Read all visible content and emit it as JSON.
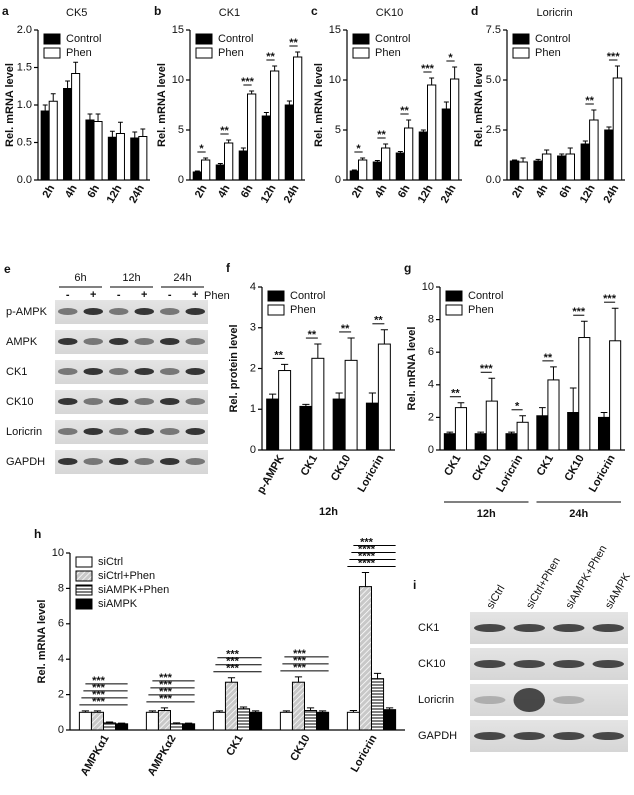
{
  "chart_data": [
    {
      "type": "bar",
      "panel": "a",
      "title": "CK5",
      "ylabel": "Rel. mRNA level",
      "legend": "upper left",
      "categories": [
        "2h",
        "4h",
        "6h",
        "12h",
        "24h"
      ],
      "series": [
        {
          "name": "Control",
          "color": "#000000",
          "values": [
            0.92,
            1.22,
            0.8,
            0.57,
            0.56
          ],
          "errors": [
            0.08,
            0.1,
            0.08,
            0.08,
            0.08
          ]
        },
        {
          "name": "Phen",
          "color": "#ffffff",
          "values": [
            1.05,
            1.42,
            0.78,
            0.62,
            0.58
          ],
          "errors": [
            0.1,
            0.15,
            0.1,
            0.15,
            0.1
          ]
        }
      ],
      "ylim": [
        0,
        2
      ],
      "yticks": [
        {
          "value": 0,
          "label": "0.0"
        },
        0.5,
        {
          "value": 1,
          "label": "1.0"
        },
        1.5,
        {
          "value": 2,
          "label": "2.0"
        }
      ]
    },
    {
      "type": "bar",
      "panel": "b",
      "title": "CK1",
      "ylabel": "Rel. mRNA level",
      "legend": "upper left",
      "categories": [
        "2h",
        "4h",
        "6h",
        "12h",
        "24h"
      ],
      "series": [
        {
          "name": "Control",
          "color": "#000000",
          "values": [
            0.8,
            1.5,
            2.9,
            6.4,
            7.5
          ],
          "errors": [
            0.1,
            0.15,
            0.3,
            0.35,
            0.4
          ]
        },
        {
          "name": "Phen",
          "color": "#ffffff",
          "values": [
            2.0,
            3.7,
            8.6,
            10.9,
            12.3
          ],
          "errors": [
            0.2,
            0.3,
            0.3,
            0.5,
            0.5
          ]
        }
      ],
      "sig": [
        "*",
        "**",
        "***",
        "**",
        "**"
      ],
      "ylim": [
        0,
        15
      ],
      "yticks": [
        0,
        5,
        10,
        15
      ]
    },
    {
      "type": "bar",
      "panel": "c",
      "title": "CK10",
      "ylabel": "Rel. mRNA level",
      "legend": "upper left",
      "categories": [
        "2h",
        "4h",
        "6h",
        "12h",
        "24h"
      ],
      "series": [
        {
          "name": "Control",
          "color": "#000000",
          "values": [
            0.9,
            1.8,
            2.7,
            4.8,
            7.1
          ],
          "errors": [
            0.1,
            0.15,
            0.15,
            0.2,
            0.7
          ]
        },
        {
          "name": "Phen",
          "color": "#ffffff",
          "values": [
            2.0,
            3.2,
            5.2,
            9.5,
            10.1
          ],
          "errors": [
            0.2,
            0.4,
            0.8,
            0.7,
            1.2
          ]
        }
      ],
      "sig": [
        "*",
        "**",
        "**",
        "***",
        "*"
      ],
      "ylim": [
        0,
        15
      ],
      "yticks": [
        0,
        5,
        10,
        15
      ]
    },
    {
      "type": "bar",
      "panel": "d",
      "title": "Loricrin",
      "ylabel": "Rel. mRNA level",
      "legend": "upper left",
      "categories": [
        "2h",
        "4h",
        "6h",
        "12h",
        "24h"
      ],
      "series": [
        {
          "name": "Control",
          "color": "#000000",
          "values": [
            0.95,
            0.95,
            1.2,
            1.8,
            2.5
          ],
          "errors": [
            0.05,
            0.08,
            0.1,
            0.15,
            0.15
          ]
        },
        {
          "name": "Phen",
          "color": "#ffffff",
          "values": [
            0.9,
            1.3,
            1.3,
            3.0,
            5.1
          ],
          "errors": [
            0.2,
            0.2,
            0.3,
            0.5,
            0.6
          ]
        }
      ],
      "sig": [
        null,
        null,
        null,
        "**",
        "***"
      ],
      "ylim": [
        0,
        7.5
      ],
      "yticks": [
        {
          "value": 0,
          "label": "0.0"
        },
        2.5,
        {
          "value": 5,
          "label": "5.0"
        },
        7.5
      ]
    },
    {
      "type": "bar",
      "panel": "f",
      "ylabel": "Rel. protein level",
      "legend": "upper left",
      "xlabel": "12h",
      "categories": [
        "p-AMPK",
        "CK1",
        "CK10",
        "Loricrin"
      ],
      "series": [
        {
          "name": "Control",
          "color": "#000000",
          "values": [
            1.25,
            1.07,
            1.25,
            1.15
          ],
          "errors": [
            0.12,
            0.05,
            0.15,
            0.25
          ]
        },
        {
          "name": "Phen",
          "color": "#ffffff",
          "values": [
            1.95,
            2.25,
            2.2,
            2.6
          ],
          "errors": [
            0.15,
            0.35,
            0.55,
            0.35
          ]
        }
      ],
      "sig": [
        "**",
        "**",
        "**",
        "**"
      ],
      "ylim": [
        0,
        4
      ],
      "yticks": [
        0,
        1,
        2,
        3,
        4
      ]
    },
    {
      "type": "bar",
      "panel": "g",
      "ylabel": "Rel. mRNA level",
      "legend": "upper left",
      "groups": [
        "12h",
        "24h"
      ],
      "categories": [
        "CK1",
        "CK10",
        "Loricrin",
        "CK1",
        "CK10",
        "Loricrin"
      ],
      "series": [
        {
          "name": "Control",
          "color": "#000000",
          "values": [
            1.0,
            1.0,
            1.0,
            2.1,
            2.3,
            2.0
          ],
          "errors": [
            0.1,
            0.1,
            0.1,
            0.5,
            1.5,
            0.3
          ]
        },
        {
          "name": "Phen",
          "color": "#ffffff",
          "values": [
            2.6,
            3.0,
            1.7,
            4.3,
            6.9,
            6.7
          ],
          "errors": [
            0.3,
            1.4,
            0.4,
            0.8,
            1.0,
            2.0
          ]
        }
      ],
      "sig": [
        "**",
        "***",
        "*",
        "**",
        "***",
        "***"
      ],
      "ylim": [
        0,
        10
      ],
      "yticks": [
        0,
        2,
        4,
        6,
        8,
        10
      ]
    },
    {
      "type": "bar",
      "panel": "h",
      "ylabel": "Rel. mRNA level",
      "legend": "upper left",
      "categories": [
        "AMPKα1",
        "AMPKα2",
        "CK1",
        "CK10",
        "Loricrin"
      ],
      "series": [
        {
          "name": "siCtrl",
          "color": "#ffffff",
          "values": [
            1.0,
            1.0,
            1.0,
            1.0,
            1.0
          ],
          "errors": [
            0.08,
            0.08,
            0.08,
            0.08,
            0.1
          ]
        },
        {
          "name": "siCtrl+Phen",
          "color": "#c8c8c8",
          "hatch": "diagonal",
          "values": [
            1.0,
            1.1,
            2.7,
            2.7,
            8.1
          ],
          "errors": [
            0.08,
            0.15,
            0.25,
            0.3,
            0.8
          ]
        },
        {
          "name": "siAMPK+Phen",
          "color": "#ffffff",
          "hatch": "horizontal",
          "values": [
            0.4,
            0.35,
            1.2,
            1.1,
            2.9
          ],
          "errors": [
            0.05,
            0.05,
            0.1,
            0.15,
            0.3
          ]
        },
        {
          "name": "siAMPK",
          "color": "#000000",
          "values": [
            0.35,
            0.35,
            1.0,
            1.0,
            1.15
          ],
          "errors": [
            0.04,
            0.04,
            0.08,
            0.08,
            0.1
          ]
        }
      ],
      "sig": [
        [
          "***",
          "***",
          "***",
          "***"
        ],
        [
          "***",
          "***",
          "***",
          "***"
        ],
        [
          "***",
          "***",
          "***"
        ],
        [
          "***",
          "***",
          "***"
        ],
        [
          "****",
          "****",
          "****",
          "***"
        ]
      ],
      "ylim": [
        0,
        10
      ],
      "yticks": [
        0,
        2,
        4,
        6,
        8,
        10
      ]
    }
  ],
  "blots": [
    {
      "panel": "e",
      "columns": [
        "6h",
        "12h",
        "24h"
      ],
      "signs": [
        "-",
        "+",
        "-",
        "+",
        "-",
        "+"
      ],
      "treatment": "Phen",
      "rows": [
        "p-AMPK",
        "AMPK",
        "CK1",
        "CK10",
        "Loricrin",
        "GAPDH"
      ]
    },
    {
      "panel": "i",
      "columns": [
        "siCtrl",
        "siCtrl+Phen",
        "siAMPK+Phen",
        "siAMPK"
      ],
      "rows": [
        "CK1",
        "CK10",
        "Loricrin",
        "GAPDH"
      ]
    }
  ]
}
